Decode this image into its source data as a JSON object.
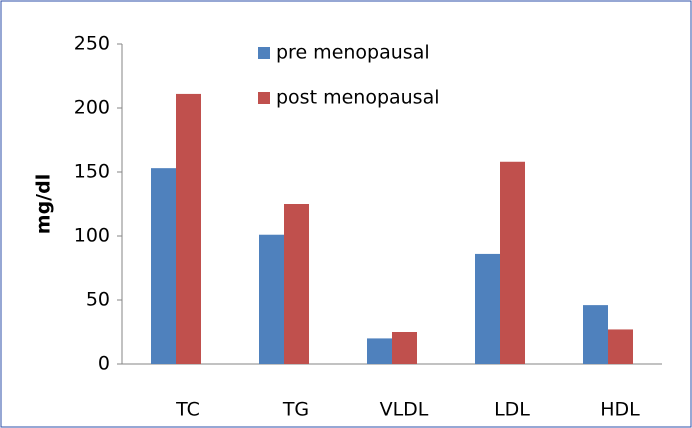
{
  "chart_data": {
    "type": "bar",
    "y_label": "mg/dl",
    "categories": [
      "TC",
      "TG",
      "VLDL",
      "LDL",
      "HDL"
    ],
    "series": [
      {
        "name": "pre menopausal",
        "color": "#4f81bd",
        "values": [
          153,
          101,
          20,
          86,
          46
        ]
      },
      {
        "name": "post menopausal",
        "color": "#c0504d",
        "values": [
          211,
          125,
          25,
          158,
          27
        ]
      }
    ],
    "ylim": [
      0,
      250
    ],
    "yticks": [
      0,
      50,
      100,
      150,
      200,
      250
    ],
    "grid": false
  }
}
